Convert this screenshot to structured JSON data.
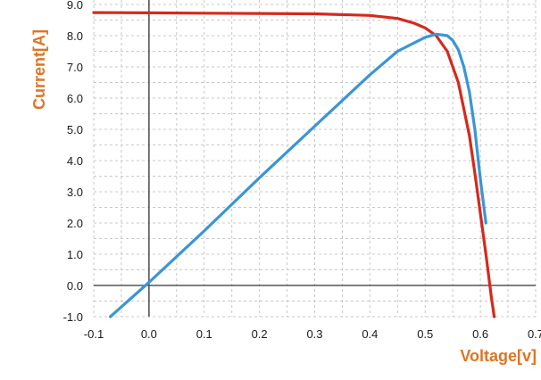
{
  "chart_data": {
    "type": "line",
    "xlabel": "Voltage[v]",
    "ylabel": "Current[A]",
    "xlim": [
      -0.1,
      0.7
    ],
    "ylim": [
      -1.0,
      10.0
    ],
    "x_ticks": [
      "-0.1",
      "0.0",
      "0.1",
      "0.2",
      "0.3",
      "0.4",
      "0.5",
      "0.6",
      "0.7"
    ],
    "y_ticks": [
      "-1.0",
      "0.0",
      "1.0",
      "2.0",
      "3.0",
      "4.0",
      "5.0",
      "6.0",
      "7.0",
      "8.0",
      "9.0"
    ],
    "grid": true,
    "series": [
      {
        "color": "#d42a1c",
        "x": [
          -0.1,
          0.0,
          0.1,
          0.2,
          0.3,
          0.4,
          0.45,
          0.48,
          0.5,
          0.52,
          0.54,
          0.56,
          0.58,
          0.59,
          0.6,
          0.61,
          0.62,
          0.625
        ],
        "y": [
          8.74,
          8.73,
          8.72,
          8.71,
          8.7,
          8.65,
          8.55,
          8.4,
          8.25,
          8.0,
          7.5,
          6.5,
          4.8,
          3.6,
          2.3,
          1.0,
          -0.4,
          -1.0
        ]
      },
      {
        "color": "#3a95d6",
        "x": [
          -0.07,
          0.0,
          0.1,
          0.2,
          0.3,
          0.4,
          0.45,
          0.5,
          0.52,
          0.54,
          0.55,
          0.56,
          0.57,
          0.58,
          0.59,
          0.6,
          0.61
        ],
        "y": [
          -1.0,
          0.1,
          1.75,
          3.45,
          5.1,
          6.75,
          7.5,
          7.95,
          8.05,
          8.0,
          7.85,
          7.55,
          7.0,
          6.2,
          5.0,
          3.4,
          2.0
        ]
      }
    ]
  }
}
